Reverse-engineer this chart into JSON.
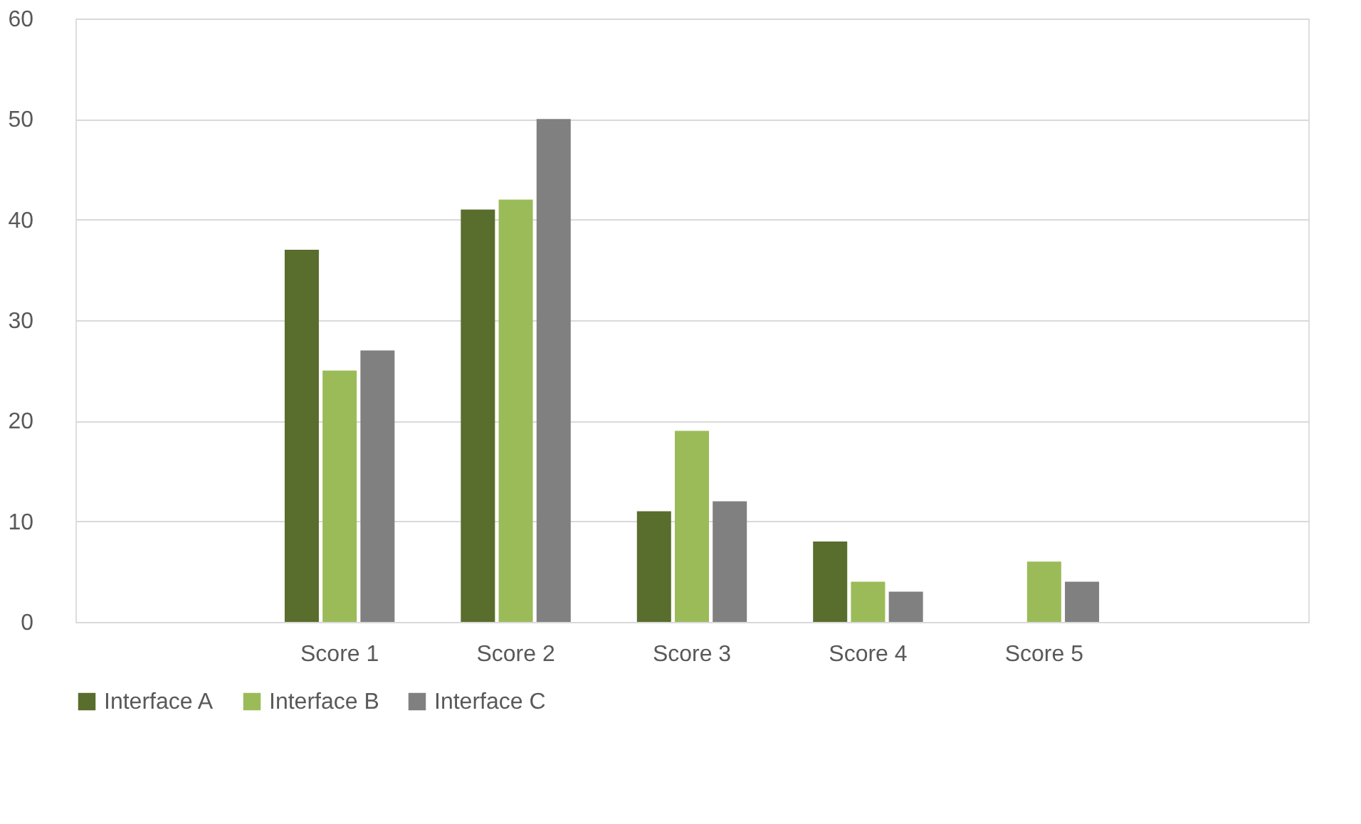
{
  "chart_data": {
    "type": "bar",
    "categories": [
      null,
      "Score 1",
      "Score 2",
      "Score 3",
      "Score 4",
      "Score 5",
      null
    ],
    "series": [
      {
        "name": "Interface A",
        "color": "#596d2c",
        "values": [
          null,
          37,
          41,
          11,
          8,
          0,
          null
        ]
      },
      {
        "name": "Interface B",
        "color": "#9bbb59",
        "values": [
          null,
          25,
          42,
          19,
          4,
          6,
          null
        ]
      },
      {
        "name": "Interface C",
        "color": "#808080",
        "values": [
          null,
          27,
          50,
          12,
          3,
          4,
          null
        ]
      }
    ],
    "ylim": [
      0,
      60
    ],
    "yticks": [
      0,
      10,
      20,
      30,
      40,
      50,
      60
    ],
    "grid": "y",
    "legend": "bottom"
  }
}
